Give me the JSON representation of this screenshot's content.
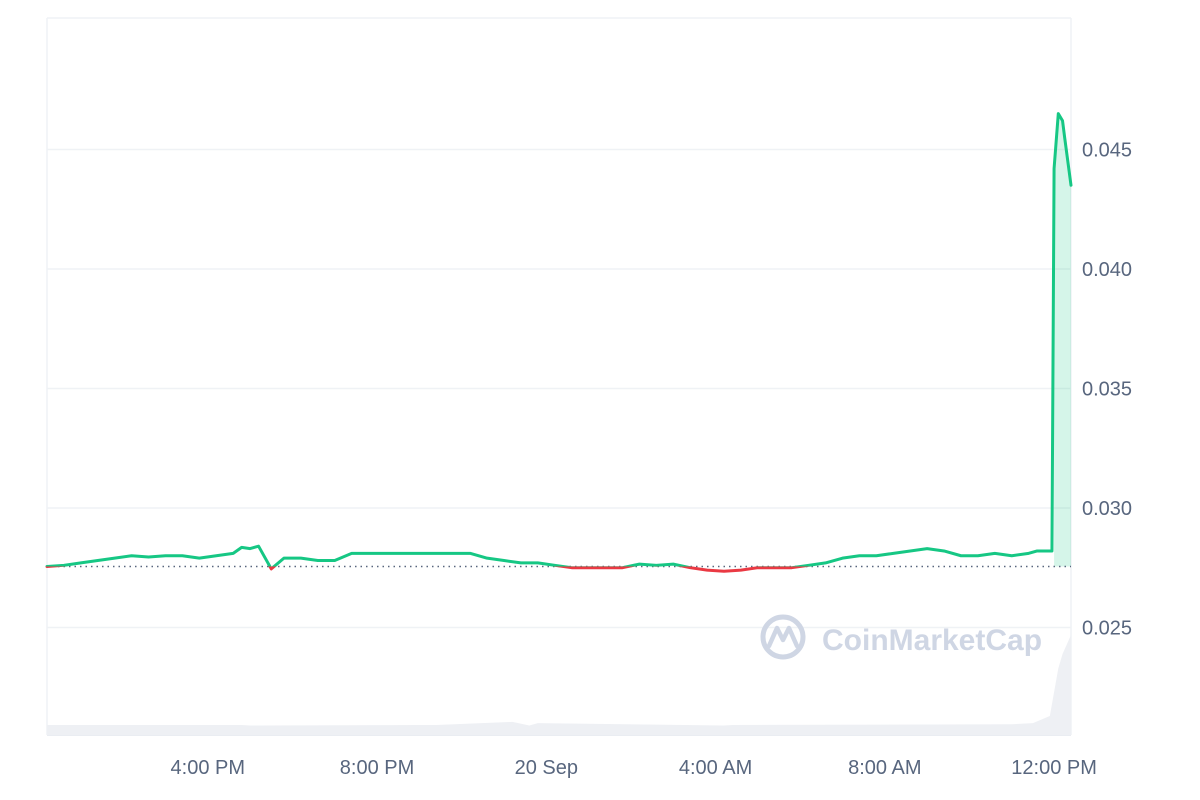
{
  "watermark": {
    "brand": "CoinMarketCap",
    "icon": "coinmarketcap-logo-icon"
  },
  "colors": {
    "up": "#16c784",
    "down": "#ea3943",
    "grid": "#eff2f5",
    "axis_text": "#58667e",
    "volume": "#eef0f4",
    "watermark": "#cfd6e4",
    "baseline": "#58667e"
  },
  "chart_data": {
    "type": "line",
    "title": "",
    "xlabel": "",
    "ylabel": "",
    "x_unit": "hours",
    "xlim": [
      12.2,
      36.4
    ],
    "ylim": [
      0.0205,
      0.0505
    ],
    "baseline_value": 0.02755,
    "y_ticks": [
      {
        "value": 0.025,
        "label": "0.025"
      },
      {
        "value": 0.03,
        "label": "0.030"
      },
      {
        "value": 0.035,
        "label": "0.035"
      },
      {
        "value": 0.04,
        "label": "0.040"
      },
      {
        "value": 0.045,
        "label": "0.045"
      }
    ],
    "x_ticks": [
      {
        "value": 16,
        "label": "4:00 PM"
      },
      {
        "value": 20,
        "label": "8:00 PM"
      },
      {
        "value": 24,
        "label": "20 Sep"
      },
      {
        "value": 28,
        "label": "4:00 AM"
      },
      {
        "value": 32,
        "label": "8:00 AM"
      },
      {
        "value": 36,
        "label": "12:00 PM"
      }
    ],
    "grid": true,
    "legend": "none",
    "price_series": {
      "x": [
        12.2,
        12.6,
        13.0,
        13.4,
        13.8,
        14.2,
        14.6,
        15.0,
        15.4,
        15.8,
        16.2,
        16.6,
        16.8,
        17.0,
        17.2,
        17.5,
        17.8,
        18.2,
        18.6,
        19.0,
        19.4,
        19.8,
        20.2,
        20.6,
        21.0,
        21.4,
        21.8,
        22.2,
        22.6,
        23.0,
        23.4,
        23.8,
        24.2,
        24.6,
        25.0,
        25.4,
        25.8,
        26.2,
        26.6,
        27.0,
        27.4,
        27.8,
        28.2,
        28.6,
        29.0,
        29.4,
        29.8,
        30.2,
        30.6,
        31.0,
        31.4,
        31.8,
        32.2,
        32.6,
        33.0,
        33.4,
        33.8,
        34.2,
        34.6,
        35.0,
        35.4,
        35.6,
        35.8,
        35.95,
        36.0,
        36.1,
        36.2,
        36.25,
        36.4
      ],
      "y": [
        0.02755,
        0.0276,
        0.0277,
        0.0278,
        0.0279,
        0.028,
        0.02795,
        0.028,
        0.028,
        0.0279,
        0.028,
        0.0281,
        0.02835,
        0.0283,
        0.0284,
        0.02745,
        0.0279,
        0.0279,
        0.0278,
        0.0278,
        0.0281,
        0.0281,
        0.0281,
        0.0281,
        0.0281,
        0.0281,
        0.0281,
        0.0281,
        0.0279,
        0.0278,
        0.0277,
        0.0277,
        0.0276,
        0.0275,
        0.0275,
        0.0275,
        0.0275,
        0.02765,
        0.0276,
        0.02765,
        0.0275,
        0.0274,
        0.02735,
        0.0274,
        0.0275,
        0.0275,
        0.0275,
        0.0276,
        0.0277,
        0.0279,
        0.028,
        0.028,
        0.0281,
        0.0282,
        0.0283,
        0.0282,
        0.028,
        0.028,
        0.0281,
        0.028,
        0.0281,
        0.0282,
        0.0282,
        0.0282,
        0.0442,
        0.0465,
        0.0462,
        0.0455,
        0.0435
      ]
    },
    "volume_series": {
      "x": [
        12.2,
        16.8,
        17.0,
        21.4,
        23.2,
        23.6,
        23.8,
        28.2,
        28.4,
        35.0,
        35.5,
        35.9,
        36.0,
        36.1,
        36.2,
        36.3,
        36.4
      ],
      "y": [
        0.00042,
        0.00042,
        0.0004,
        0.00042,
        0.00055,
        0.0004,
        0.0005,
        0.0004,
        0.00042,
        0.00045,
        0.0005,
        0.0008,
        0.0018,
        0.0028,
        0.0034,
        0.0038,
        0.0042
      ]
    }
  }
}
